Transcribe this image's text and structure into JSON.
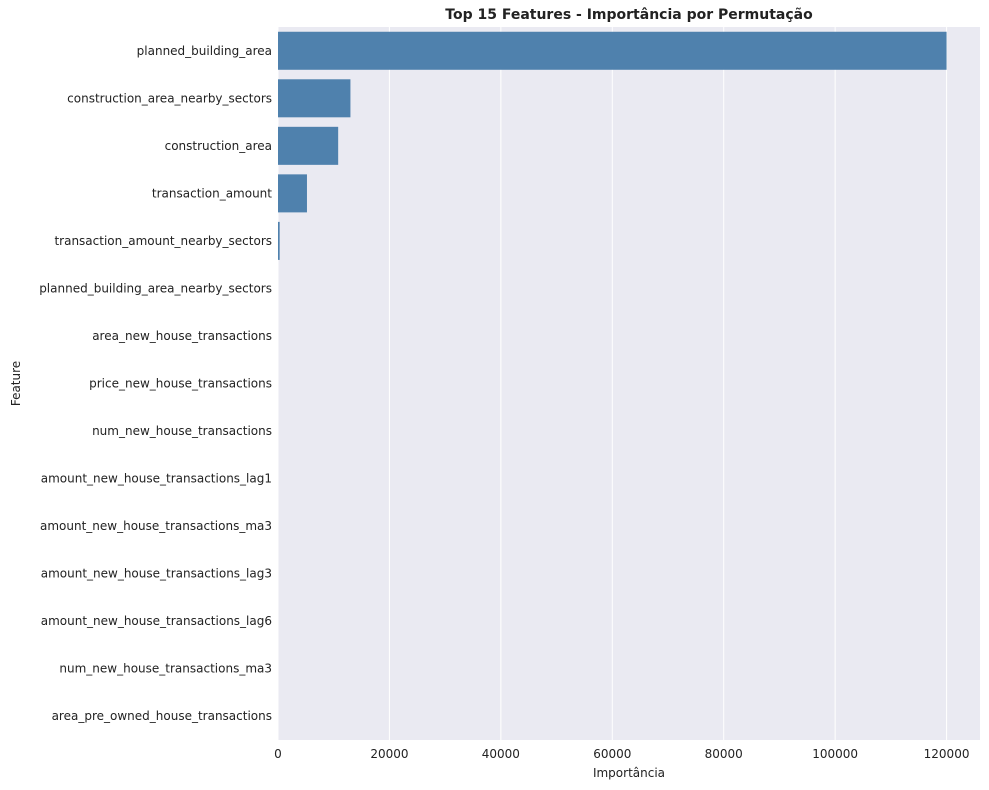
{
  "chart_data": {
    "type": "bar",
    "orientation": "horizontal",
    "title": "Top 15 Features - Importância por Permutação",
    "xlabel": "Importância",
    "ylabel": "Feature",
    "xlim": [
      0,
      126000
    ],
    "xticks": [
      0,
      20000,
      40000,
      60000,
      80000,
      100000,
      120000
    ],
    "grid": true,
    "bar_color": "#4f81ad",
    "background_color": "#eaeaf2",
    "categories": [
      "planned_building_area",
      "construction_area_nearby_sectors",
      "construction_area",
      "transaction_amount",
      "transaction_amount_nearby_sectors",
      "planned_building_area_nearby_sectors",
      "area_new_house_transactions",
      "price_new_house_transactions",
      "num_new_house_transactions",
      "amount_new_house_transactions_lag1",
      "amount_new_house_transactions_ma3",
      "amount_new_house_transactions_lag3",
      "amount_new_house_transactions_lag6",
      "num_new_house_transactions_ma3",
      "area_pre_owned_house_transactions"
    ],
    "values": [
      120000,
      13000,
      10800,
      5200,
      300,
      0,
      0,
      0,
      0,
      0,
      0,
      0,
      0,
      0,
      0
    ]
  }
}
